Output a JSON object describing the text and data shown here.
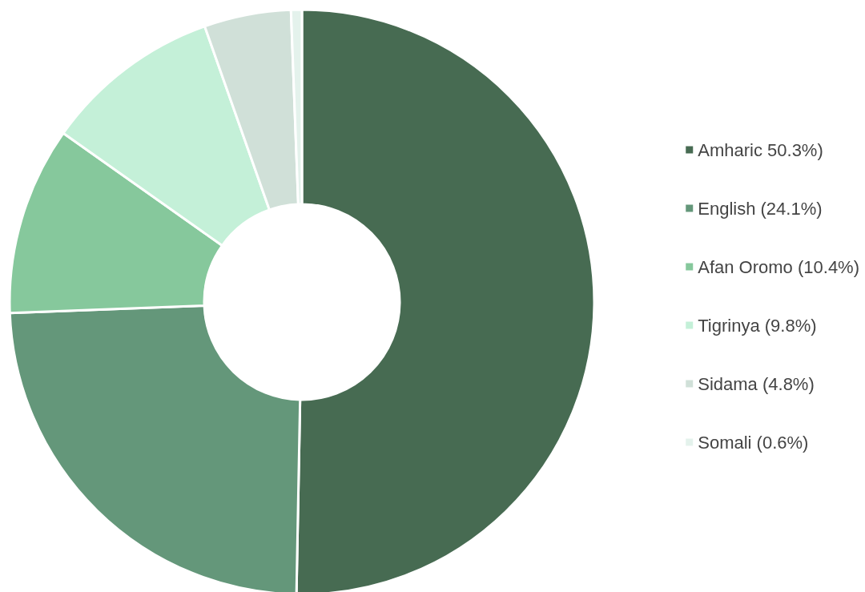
{
  "chart_data": {
    "type": "donut",
    "categories": [
      "Amharic 50.3%)",
      "English (24.1%)",
      "Afan Oromo (10.4%)",
      "Tigrinya (9.8%)",
      "Sidama (4.8%)",
      "Somali (0.6%)"
    ],
    "values": [
      50.3,
      24.1,
      10.4,
      9.8,
      4.8,
      0.6
    ],
    "colors": [
      "#476b52",
      "#64977a",
      "#86c89c",
      "#c4f0d8",
      "#d0e0d8",
      "#e4f2ec"
    ],
    "legend": "right"
  }
}
